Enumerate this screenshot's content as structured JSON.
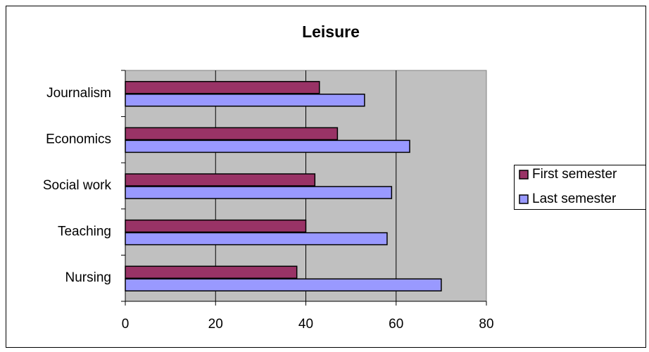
{
  "chart_data": {
    "type": "bar",
    "orientation": "horizontal",
    "title": "Leisure",
    "categories": [
      "Journalism",
      "Economics",
      "Social work",
      "Teaching",
      "Nursing"
    ],
    "series": [
      {
        "name": "First semester",
        "color": "#993366",
        "values": [
          43,
          47,
          42,
          40,
          38
        ]
      },
      {
        "name": "Last semester",
        "color": "#9999ff",
        "values": [
          53,
          63,
          59,
          58,
          70
        ]
      }
    ],
    "xlim": [
      0,
      80
    ],
    "xticks": [
      0,
      20,
      40,
      60,
      80
    ],
    "grid": true,
    "legend": "right"
  }
}
